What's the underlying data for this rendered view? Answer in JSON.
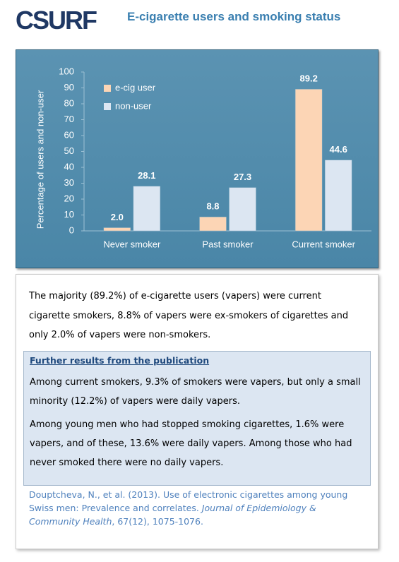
{
  "header": {
    "logo": "CSURF",
    "title": "E-cigarette users and smoking status"
  },
  "chart_data": {
    "type": "bar",
    "y_label": "Percentage of users and non-user",
    "categories": [
      "Never smoker",
      "Past smoker",
      "Current smoker"
    ],
    "series": [
      {
        "name": "e-cig user",
        "color": "#fcd5b5",
        "values": [
          2.0,
          8.8,
          89.2
        ],
        "value_labels": [
          "2.0",
          "8.8",
          "89.2"
        ]
      },
      {
        "name": "non-user",
        "color": "#dce6f2",
        "values": [
          28.1,
          27.3,
          44.6
        ]
      }
    ],
    "ylim": [
      0,
      100
    ],
    "yticks": [
      0,
      10,
      20,
      30,
      40,
      50,
      60,
      70,
      80,
      90,
      100
    ],
    "grid": false,
    "legend": "top-left"
  },
  "summary": "The majority (89.2%) of e-cigarette users (vapers) were current cigarette smokers, 8.8% of vapers were ex-smokers of cigarettes and only 2.0% of vapers were non-smokers.",
  "further": {
    "heading": "Further results from the publication",
    "paragraphs": [
      "Among current smokers,  9.3% of smokers were vapers, but only a small minority (12.2%) of vapers were daily vapers.",
      "Among young men who had stopped smoking cigarettes, 1.6% were vapers, and of these, 13.6% were daily vapers. Among those who had never smoked there were no daily vapers."
    ]
  },
  "citation": {
    "authors_title": "Douptcheva, N., et al. (2013).  Use of electronic cigarettes among young Swiss men: Prevalence and correlates.",
    "journal": "Journal of Epidemiology & Community Health",
    "details": ", 67(12), 1075-1076."
  }
}
